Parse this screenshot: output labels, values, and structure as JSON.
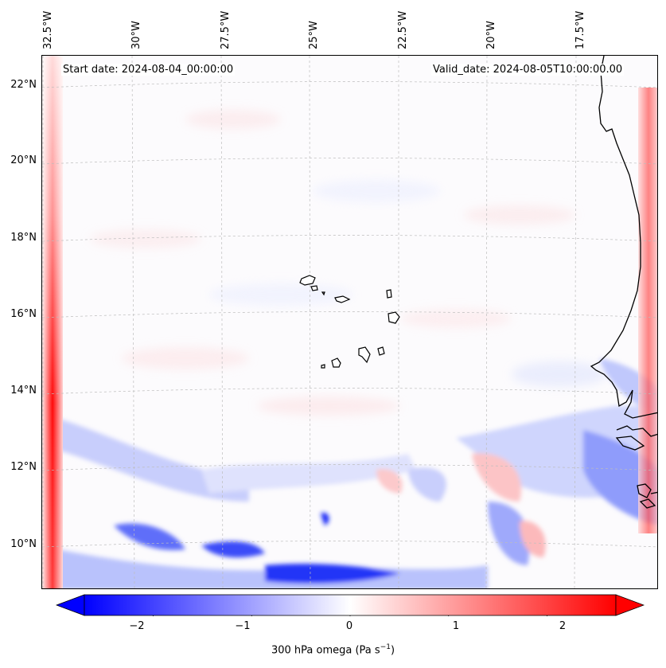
{
  "map": {
    "start_date": "Start date: 2024-08-04_00:00:00",
    "valid_date": "Valid_date: 2024-08-05T10:00:00.00",
    "longitude_labels": [
      "32.5°W",
      "30°W",
      "27.5°W",
      "25°W",
      "22.5°W",
      "20°W",
      "17.5°W"
    ],
    "latitude_labels": [
      "22°N",
      "20°N",
      "18°N",
      "16°N",
      "14°N",
      "12°N",
      "10°N"
    ],
    "variable": "300 hPa omega",
    "units": "Pa s",
    "units_exponent": "−1",
    "colorbar": {
      "min": -2.7,
      "max": 2.7,
      "ticks": [
        "−2",
        "−1",
        "0",
        "1",
        "2"
      ],
      "tick_values": [
        -2,
        -1,
        0,
        1,
        2
      ],
      "colormap": "bwr",
      "low_color": "#0000ff",
      "mid_color": "#ffffff",
      "high_color": "#ff0000"
    }
  }
}
